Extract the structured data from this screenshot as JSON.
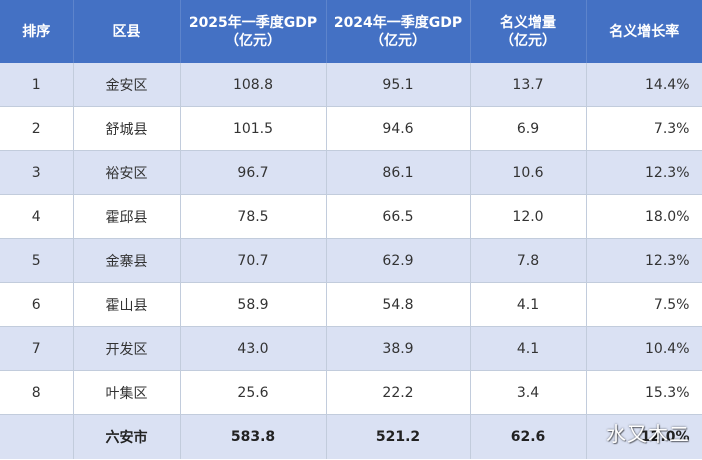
{
  "header": {
    "rank": "排序",
    "district": "区县",
    "gdp_2025": [
      "2025年一季度GDP",
      "（亿元）"
    ],
    "gdp_2024": [
      "2024年一季度GDP",
      "（亿元）"
    ],
    "nominal_increase": [
      "名义增量",
      "（亿元）"
    ],
    "nominal_growth": "名义增长率"
  },
  "rows": [
    {
      "rank": "1",
      "district": "金安区",
      "gdp_2025": "108.8",
      "gdp_2024": "95.1",
      "increase": "13.7",
      "growth": "14.4%"
    },
    {
      "rank": "2",
      "district": "舒城县",
      "gdp_2025": "101.5",
      "gdp_2024": "94.6",
      "increase": "6.9",
      "growth": "7.3%"
    },
    {
      "rank": "3",
      "district": "裕安区",
      "gdp_2025": "96.7",
      "gdp_2024": "86.1",
      "increase": "10.6",
      "growth": "12.3%"
    },
    {
      "rank": "4",
      "district": "霍邱县",
      "gdp_2025": "78.5",
      "gdp_2024": "66.5",
      "increase": "12.0",
      "growth": "18.0%"
    },
    {
      "rank": "5",
      "district": "金寨县",
      "gdp_2025": "70.7",
      "gdp_2024": "62.9",
      "increase": "7.8",
      "growth": "12.3%"
    },
    {
      "rank": "6",
      "district": "霍山县",
      "gdp_2025": "58.9",
      "gdp_2024": "54.8",
      "increase": "4.1",
      "growth": "7.5%"
    },
    {
      "rank": "7",
      "district": "开发区",
      "gdp_2025": "43.0",
      "gdp_2024": "38.9",
      "increase": "4.1",
      "growth": "10.4%"
    },
    {
      "rank": "8",
      "district": "叶集区",
      "gdp_2025": "25.6",
      "gdp_2024": "22.2",
      "increase": "3.4",
      "growth": "15.3%"
    }
  ],
  "total": {
    "rank": "",
    "district": "六安市",
    "gdp_2025": "583.8",
    "gdp_2024": "521.2",
    "increase": "62.6",
    "growth": "12.0%"
  },
  "watermark": "水又木二"
}
